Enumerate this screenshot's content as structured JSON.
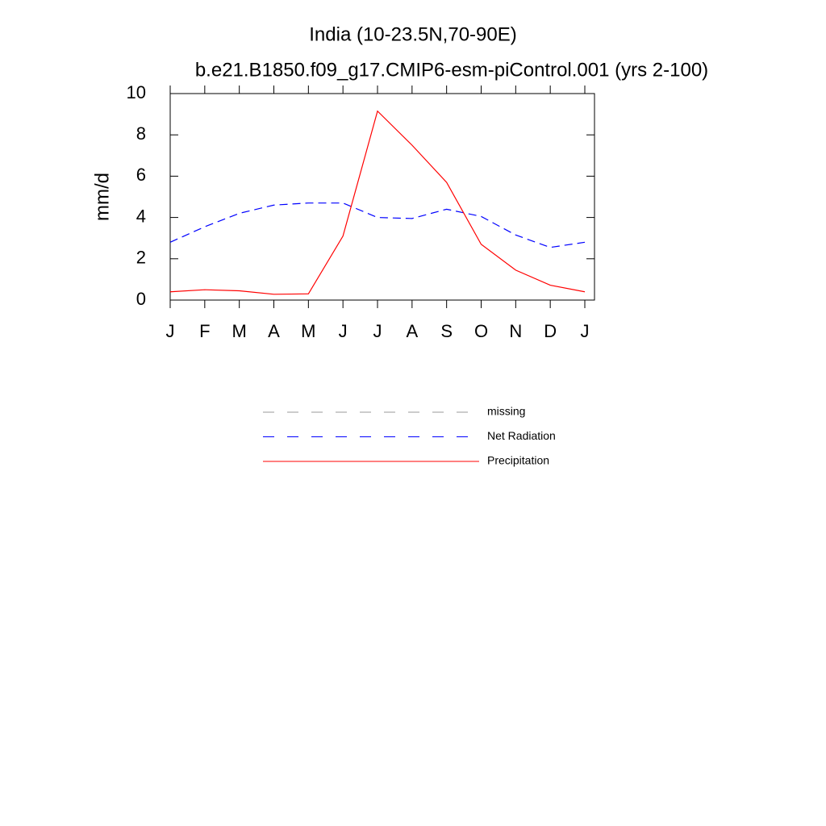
{
  "chart_data": {
    "type": "line",
    "title": "India (10-23.5N,70-90E)",
    "subtitle": "b.e21.B1850.f09_g17.CMIP6-esm-piControl.001 (yrs 2-100)",
    "y_label": "mm/d",
    "categories": [
      "J",
      "F",
      "M",
      "A",
      "M",
      "J",
      "J",
      "A",
      "S",
      "O",
      "N",
      "D",
      "J"
    ],
    "ylim": [
      0,
      10
    ],
    "yticks": [
      0,
      2,
      4,
      6,
      8,
      10
    ],
    "series": [
      {
        "name": "missing",
        "color": "#999999",
        "dash": true,
        "values": [
          null,
          null,
          null,
          null,
          null,
          null,
          null,
          null,
          null,
          null,
          null,
          null,
          null
        ]
      },
      {
        "name": "Net Radiation",
        "color": "#0000ff",
        "dash": true,
        "values": [
          2.8,
          3.55,
          4.2,
          4.6,
          4.7,
          4.7,
          4.0,
          3.95,
          4.4,
          4.05,
          3.15,
          2.55,
          2.8
        ]
      },
      {
        "name": "Precipitation",
        "color": "#ff0000",
        "dash": false,
        "values": [
          0.4,
          0.5,
          0.45,
          0.28,
          0.3,
          3.1,
          9.15,
          7.5,
          5.7,
          2.7,
          1.45,
          0.72,
          0.4
        ]
      }
    ]
  }
}
